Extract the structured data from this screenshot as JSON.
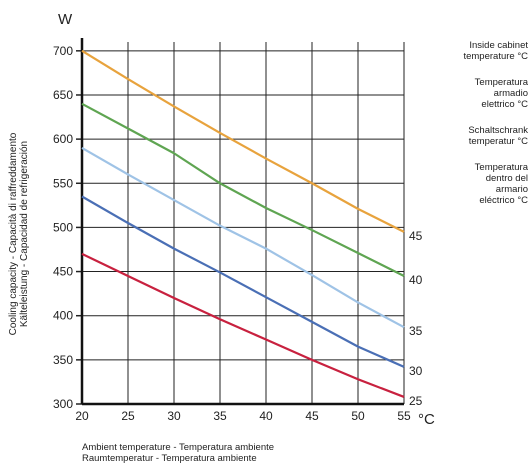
{
  "chart_data": {
    "type": "line",
    "title": "",
    "y_unit": "W",
    "x_unit": "°C",
    "ylabel_lines": [
      "Cooling capacity - Capacità di raffreddamento",
      "Kälteleistung - Capacidad de refrigeración"
    ],
    "xlabel_lines": [
      "Ambient temperature - Temperatura ambiente",
      "Raumtemperatur - Temperatura ambiente"
    ],
    "legend_title_blocks": [
      "Inside cabinet\ntemperature °C",
      "Temperatura\narmadio\nelettrico °C",
      "Schaltschrank\ntemperatur °C",
      "Temperatura\ndentro del\narmario\neléctrico °C"
    ],
    "x_ticks": [
      "20",
      "25",
      "30",
      "35",
      "40",
      "45",
      "50",
      "55"
    ],
    "y_ticks": [
      "300",
      "350",
      "400",
      "450",
      "500",
      "550",
      "600",
      "650",
      "700"
    ],
    "xlim": [
      20,
      55
    ],
    "ylim": [
      300,
      710
    ],
    "grid": true,
    "x": [
      20,
      25,
      30,
      35,
      40,
      45,
      50,
      55
    ],
    "series": [
      {
        "name": "45",
        "color": "#e8a33d",
        "values": [
          700,
          668,
          637,
          607,
          578,
          550,
          521,
          495
        ]
      },
      {
        "name": "40",
        "color": "#5fa552",
        "values": [
          640,
          612,
          584,
          550,
          522,
          497,
          471,
          445
        ]
      },
      {
        "name": "35",
        "color": "#9fc3e6",
        "values": [
          590,
          560,
          531,
          502,
          476,
          446,
          415,
          387
        ]
      },
      {
        "name": "30",
        "color": "#4a6fb5",
        "values": [
          535,
          505,
          476,
          449,
          421,
          393,
          365,
          342
        ]
      },
      {
        "name": "25",
        "color": "#c8213f",
        "values": [
          470,
          445,
          420,
          396,
          373,
          350,
          328,
          308
        ]
      }
    ]
  }
}
